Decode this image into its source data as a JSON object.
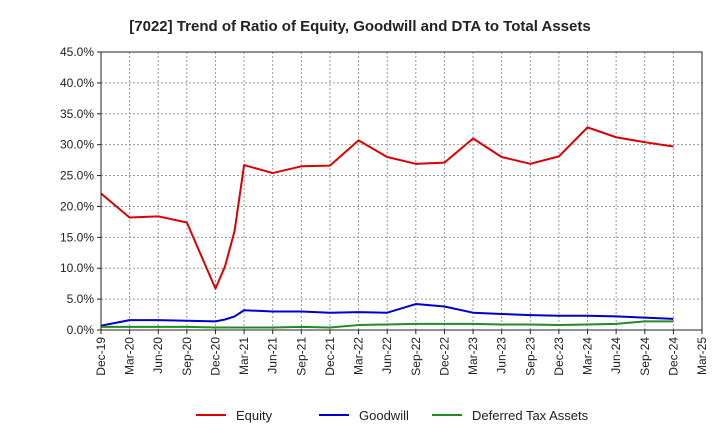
{
  "chart_data": {
    "type": "line",
    "title": "[7022]  Trend of Ratio of Equity, Goodwill and DTA to Total Assets",
    "xlabel": "",
    "ylabel": "",
    "ylim": [
      0,
      45
    ],
    "y_ticks": [
      "0.0%",
      "5.0%",
      "10.0%",
      "15.0%",
      "20.0%",
      "25.0%",
      "30.0%",
      "35.0%",
      "40.0%",
      "45.0%"
    ],
    "x_tick_labels": [
      "Dec-19",
      "Mar-20",
      "Jun-20",
      "Sep-20",
      "Dec-20",
      "Mar-21",
      "Jun-21",
      "Sep-21",
      "Dec-21",
      "Mar-22",
      "Jun-22",
      "Sep-22",
      "Dec-22",
      "Mar-23",
      "Jun-23",
      "Sep-23",
      "Dec-23",
      "Mar-24",
      "Jun-24",
      "Sep-24",
      "Dec-24",
      "Mar-25"
    ],
    "grid": true,
    "legend_position": "bottom",
    "series": [
      {
        "name": "Equity",
        "color": "#dd0000",
        "points": [
          [
            "Dec-19",
            22.1
          ],
          [
            "Mar-20",
            18.2
          ],
          [
            "Jun-20",
            18.4
          ],
          [
            "Sep-20",
            17.4
          ],
          [
            "Dec-20",
            6.7
          ],
          [
            "Jan-21",
            10.3
          ],
          [
            "Feb-21",
            16.0
          ],
          [
            "Mar-21",
            26.7
          ],
          [
            "Jun-21",
            25.4
          ],
          [
            "Sep-21",
            26.5
          ],
          [
            "Dec-21",
            26.6
          ],
          [
            "Mar-22",
            30.7
          ],
          [
            "Jun-22",
            28.0
          ],
          [
            "Sep-22",
            26.9
          ],
          [
            "Dec-22",
            27.1
          ],
          [
            "Mar-23",
            31.0
          ],
          [
            "Jun-23",
            28.0
          ],
          [
            "Sep-23",
            26.9
          ],
          [
            "Dec-23",
            28.1
          ],
          [
            "Mar-24",
            32.8
          ],
          [
            "Jun-24",
            31.2
          ],
          [
            "Sep-24",
            30.4
          ],
          [
            "Dec-24",
            29.7
          ]
        ]
      },
      {
        "name": "Goodwill",
        "color": "#0000cc",
        "points": [
          [
            "Dec-19",
            0.7
          ],
          [
            "Mar-20",
            1.6
          ],
          [
            "Jun-20",
            1.6
          ],
          [
            "Sep-20",
            1.5
          ],
          [
            "Dec-20",
            1.4
          ],
          [
            "Jan-21",
            1.7
          ],
          [
            "Feb-21",
            2.2
          ],
          [
            "Mar-21",
            3.2
          ],
          [
            "Jun-21",
            3.0
          ],
          [
            "Sep-21",
            3.0
          ],
          [
            "Dec-21",
            2.8
          ],
          [
            "Mar-22",
            2.9
          ],
          [
            "Jun-22",
            2.8
          ],
          [
            "Sep-22",
            4.2
          ],
          [
            "Dec-22",
            3.8
          ],
          [
            "Mar-23",
            2.8
          ],
          [
            "Jun-23",
            2.6
          ],
          [
            "Sep-23",
            2.4
          ],
          [
            "Dec-23",
            2.3
          ],
          [
            "Mar-24",
            2.3
          ],
          [
            "Jun-24",
            2.2
          ],
          [
            "Sep-24",
            2.0
          ],
          [
            "Dec-24",
            1.8
          ]
        ]
      },
      {
        "name": "Deferred Tax Assets",
        "color": "#228b22",
        "points": [
          [
            "Dec-19",
            0.5
          ],
          [
            "Mar-20",
            0.5
          ],
          [
            "Jun-20",
            0.5
          ],
          [
            "Sep-20",
            0.5
          ],
          [
            "Dec-20",
            0.4
          ],
          [
            "Jan-21",
            0.4
          ],
          [
            "Feb-21",
            0.4
          ],
          [
            "Mar-21",
            0.4
          ],
          [
            "Jun-21",
            0.4
          ],
          [
            "Sep-21",
            0.5
          ],
          [
            "Dec-21",
            0.4
          ],
          [
            "Mar-22",
            0.8
          ],
          [
            "Jun-22",
            0.9
          ],
          [
            "Sep-22",
            1.0
          ],
          [
            "Dec-22",
            1.0
          ],
          [
            "Mar-23",
            1.0
          ],
          [
            "Jun-23",
            0.9
          ],
          [
            "Sep-23",
            0.9
          ],
          [
            "Dec-23",
            0.8
          ],
          [
            "Mar-24",
            0.9
          ],
          [
            "Jun-24",
            1.0
          ],
          [
            "Sep-24",
            1.4
          ],
          [
            "Dec-24",
            1.4
          ]
        ]
      }
    ]
  }
}
